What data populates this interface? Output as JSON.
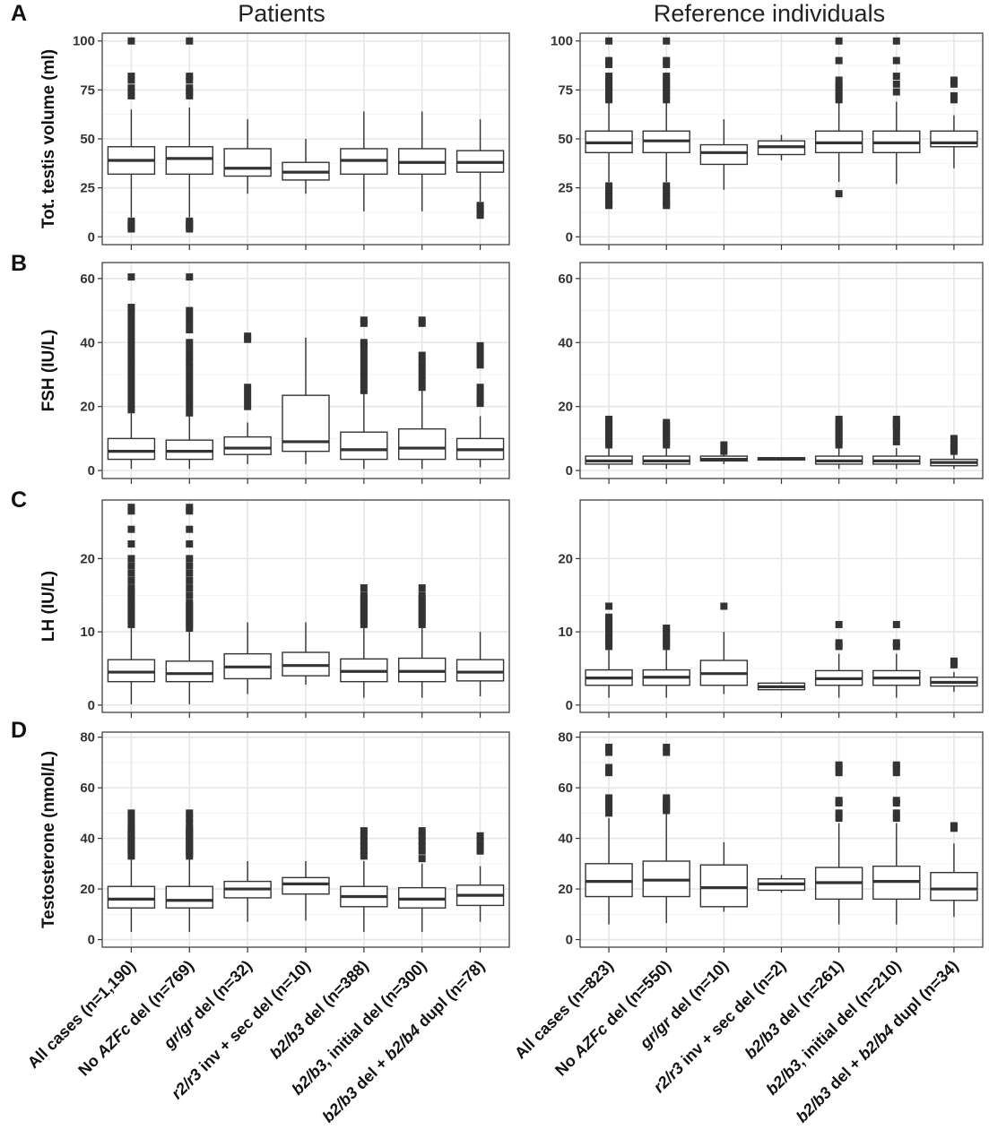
{
  "column_titles": [
    "Patients",
    "Reference individuals"
  ],
  "x_categories": {
    "patients": [
      [
        {
          "t": "All cases (n=1,190)",
          "i": false
        }
      ],
      [
        {
          "t": "No ",
          "i": false
        },
        {
          "t": "AZFc",
          "i": true
        },
        {
          "t": " del (n=769)",
          "i": false
        }
      ],
      [
        {
          "t": "gr/gr",
          "i": true
        },
        {
          "t": " del (n=32)",
          "i": false
        }
      ],
      [
        {
          "t": "r2/r3",
          "i": true
        },
        {
          "t": " inv + sec del (n=10)",
          "i": false
        }
      ],
      [
        {
          "t": "b2/b3",
          "i": true
        },
        {
          "t": " del (n=388)",
          "i": false
        }
      ],
      [
        {
          "t": "b2/b3",
          "i": true
        },
        {
          "t": ", initial del (n=300)",
          "i": false
        }
      ],
      [
        {
          "t": "b2/b3",
          "i": true
        },
        {
          "t": " del + ",
          "i": false
        },
        {
          "t": "b2/b4",
          "i": true
        },
        {
          "t": " dupl (n=78)",
          "i": false
        }
      ]
    ],
    "reference": [
      [
        {
          "t": "All cases (n=823)",
          "i": false
        }
      ],
      [
        {
          "t": "No ",
          "i": false
        },
        {
          "t": "AZFc",
          "i": true
        },
        {
          "t": " del (n=550)",
          "i": false
        }
      ],
      [
        {
          "t": "gr/gr",
          "i": true
        },
        {
          "t": " del (n=10)",
          "i": false
        }
      ],
      [
        {
          "t": "r2/r3",
          "i": true
        },
        {
          "t": " inv + sec del (n=2)",
          "i": false
        }
      ],
      [
        {
          "t": "b2/b3",
          "i": true
        },
        {
          "t": " del (n=261)",
          "i": false
        }
      ],
      [
        {
          "t": "b2/b3",
          "i": true
        },
        {
          "t": ", initial del (n=210)",
          "i": false
        }
      ],
      [
        {
          "t": "b2/b3",
          "i": true
        },
        {
          "t": " del + ",
          "i": false
        },
        {
          "t": "b2/b4",
          "i": true
        },
        {
          "t": " dupl (n=34)",
          "i": false
        }
      ]
    ]
  },
  "chart_data": [
    {
      "type": "box",
      "panel": "A",
      "column": "Patients",
      "ylabel": "Tot. testis volume (ml)",
      "ylim": [
        -4,
        104
      ],
      "yticks": [
        0,
        25,
        50,
        75,
        100
      ],
      "grid": true,
      "boxes": [
        {
          "q1": 32,
          "median": 39,
          "q3": 46,
          "low": 10,
          "high": 65,
          "outliers": [
            4,
            5,
            6,
            7,
            8,
            72,
            74,
            76,
            80,
            82,
            100
          ]
        },
        {
          "q1": 32,
          "median": 40,
          "q3": 46,
          "low": 10,
          "high": 66,
          "outliers": [
            4,
            5,
            6,
            7,
            8,
            72,
            74,
            76,
            80,
            82,
            100
          ]
        },
        {
          "q1": 31,
          "median": 35,
          "q3": 45,
          "low": 22,
          "high": 60,
          "outliers": []
        },
        {
          "q1": 29,
          "median": 33,
          "q3": 38,
          "low": 22,
          "high": 50,
          "outliers": []
        },
        {
          "q1": 32,
          "median": 39,
          "q3": 45,
          "low": 13,
          "high": 64,
          "outliers": []
        },
        {
          "q1": 32,
          "median": 38,
          "q3": 45,
          "low": 13,
          "high": 64,
          "outliers": []
        },
        {
          "q1": 33,
          "median": 38,
          "q3": 44,
          "low": 18,
          "high": 60,
          "outliers": [
            11,
            12,
            14,
            15,
            16
          ]
        }
      ]
    },
    {
      "type": "box",
      "panel": "A",
      "column": "Reference individuals",
      "ylabel": "",
      "ylim": [
        -4,
        104
      ],
      "yticks": [
        0,
        25,
        50,
        75,
        100
      ],
      "grid": true,
      "boxes": [
        {
          "q1": 43,
          "median": 48,
          "q3": 54,
          "low": 28,
          "high": 69,
          "outliers": [
            16,
            17,
            18,
            20,
            22,
            24,
            26,
            70,
            72,
            74,
            76,
            78,
            80,
            82,
            88,
            90,
            100
          ]
        },
        {
          "q1": 43,
          "median": 49,
          "q3": 54,
          "low": 28,
          "high": 69,
          "outliers": [
            16,
            17,
            18,
            20,
            22,
            24,
            26,
            70,
            72,
            74,
            76,
            78,
            80,
            82,
            88,
            90,
            100
          ]
        },
        {
          "q1": 37,
          "median": 43,
          "q3": 47,
          "low": 24,
          "high": 60,
          "outliers": []
        },
        {
          "q1": 42,
          "median": 46,
          "q3": 49,
          "low": 39,
          "high": 52,
          "outliers": []
        },
        {
          "q1": 43,
          "median": 48,
          "q3": 54,
          "low": 28,
          "high": 69,
          "outliers": [
            22,
            70,
            72,
            74,
            76,
            78,
            80,
            90,
            100
          ]
        },
        {
          "q1": 43,
          "median": 48,
          "q3": 54,
          "low": 27,
          "high": 69,
          "outliers": [
            74,
            78,
            82,
            90,
            100
          ]
        },
        {
          "q1": 46,
          "median": 48,
          "q3": 54,
          "low": 35,
          "high": 62,
          "outliers": [
            70,
            72,
            78,
            80
          ]
        }
      ]
    },
    {
      "type": "box",
      "panel": "B",
      "column": "Patients",
      "ylabel": "FSH (IU/L)",
      "ylim": [
        -2.5,
        65
      ],
      "yticks": [
        0,
        20,
        40,
        60
      ],
      "grid": true,
      "boxes": [
        {
          "q1": 3.5,
          "median": 6,
          "q3": 10,
          "low": 0.5,
          "high": 18,
          "outliers": [
            19,
            20,
            22,
            24,
            26,
            28,
            30,
            32,
            34,
            36,
            38,
            40,
            42,
            44,
            46,
            48,
            50,
            51,
            60.5
          ]
        },
        {
          "q1": 3.5,
          "median": 6,
          "q3": 9.5,
          "low": 0.5,
          "high": 17,
          "outliers": [
            18,
            20,
            22,
            24,
            26,
            28,
            30,
            32,
            34,
            36,
            38,
            40,
            44,
            46,
            48,
            50,
            60.5
          ]
        },
        {
          "q1": 5,
          "median": 7,
          "q3": 10.5,
          "low": 2,
          "high": 15,
          "outliers": [
            20,
            22,
            24,
            26,
            41,
            42
          ]
        },
        {
          "q1": 6,
          "median": 9,
          "q3": 23.5,
          "low": 2,
          "high": 41.5,
          "outliers": []
        },
        {
          "q1": 3.5,
          "median": 6.5,
          "q3": 12,
          "low": 0.5,
          "high": 24,
          "outliers": [
            25,
            27,
            29,
            31,
            33,
            35,
            37,
            39,
            40,
            46,
            47
          ]
        },
        {
          "q1": 3.5,
          "median": 7,
          "q3": 13,
          "low": 0.5,
          "high": 25,
          "outliers": [
            26,
            28,
            30,
            32,
            34,
            36,
            46,
            47
          ]
        },
        {
          "q1": 3.5,
          "median": 6.5,
          "q3": 10,
          "low": 1,
          "high": 17,
          "outliers": [
            21,
            22,
            24,
            26,
            33,
            35,
            37,
            39
          ]
        }
      ]
    },
    {
      "type": "box",
      "panel": "B",
      "column": "Reference individuals",
      "ylabel": "",
      "ylim": [
        -2.5,
        65
      ],
      "yticks": [
        0,
        20,
        40,
        60
      ],
      "grid": true,
      "boxes": [
        {
          "q1": 2,
          "median": 3,
          "q3": 4.5,
          "low": 0.5,
          "high": 7,
          "outliers": [
            8,
            9,
            10,
            11,
            12,
            13,
            14,
            15,
            16
          ]
        },
        {
          "q1": 2,
          "median": 3,
          "q3": 4.5,
          "low": 0.5,
          "high": 7,
          "outliers": [
            8,
            9,
            10,
            11,
            12,
            13,
            14,
            15
          ]
        },
        {
          "q1": 3,
          "median": 3.5,
          "q3": 4.5,
          "low": 2,
          "high": 5,
          "outliers": [
            6,
            8
          ]
        },
        {
          "q1": 3.3,
          "median": 3.7,
          "q3": 4,
          "low": 3.3,
          "high": 4,
          "outliers": []
        },
        {
          "q1": 2,
          "median": 3,
          "q3": 4.5,
          "low": 0.5,
          "high": 7,
          "outliers": [
            8,
            9,
            10,
            11,
            12,
            13,
            14,
            15,
            16
          ]
        },
        {
          "q1": 2,
          "median": 3,
          "q3": 4.5,
          "low": 0.5,
          "high": 7,
          "outliers": [
            9,
            11,
            13,
            14,
            15,
            16
          ]
        },
        {
          "q1": 1.5,
          "median": 2.5,
          "q3": 3.5,
          "low": 0.5,
          "high": 5,
          "outliers": [
            6,
            7,
            8,
            9,
            10
          ]
        }
      ]
    },
    {
      "type": "box",
      "panel": "C",
      "column": "Patients",
      "ylabel": "LH (IU/L)",
      "ylim": [
        -1,
        28
      ],
      "yticks": [
        0,
        10,
        20
      ],
      "grid": true,
      "boxes": [
        {
          "q1": 3.2,
          "median": 4.5,
          "q3": 6.2,
          "low": 0.1,
          "high": 10.5,
          "outliers": [
            11,
            11.5,
            12,
            12.5,
            13,
            13.5,
            14,
            14.5,
            15,
            15.5,
            16,
            17,
            18,
            19,
            20,
            22,
            24,
            26.5,
            27
          ]
        },
        {
          "q1": 3.2,
          "median": 4.3,
          "q3": 6,
          "low": 0.1,
          "high": 10,
          "outliers": [
            10.5,
            11,
            11.5,
            12,
            12.5,
            13,
            13.5,
            14,
            15,
            16,
            17,
            18,
            19,
            20,
            22,
            24,
            26.5,
            27
          ]
        },
        {
          "q1": 3.6,
          "median": 5.2,
          "q3": 7,
          "low": 1.5,
          "high": 11.3,
          "outliers": []
        },
        {
          "q1": 4,
          "median": 5.4,
          "q3": 7.2,
          "low": 2.8,
          "high": 11.3,
          "outliers": []
        },
        {
          "q1": 3.2,
          "median": 4.6,
          "q3": 6.3,
          "low": 1,
          "high": 10.5,
          "outliers": [
            11,
            11.5,
            12,
            12.5,
            13,
            13.5,
            14,
            14.5,
            15,
            16
          ]
        },
        {
          "q1": 3.2,
          "median": 4.6,
          "q3": 6.4,
          "low": 1,
          "high": 10.5,
          "outliers": [
            11,
            11.5,
            12,
            12.5,
            13,
            13.5,
            14,
            14.5,
            15,
            16
          ]
        },
        {
          "q1": 3.3,
          "median": 4.5,
          "q3": 6.2,
          "low": 1.2,
          "high": 10,
          "outliers": []
        }
      ]
    },
    {
      "type": "box",
      "panel": "C",
      "column": "Reference individuals",
      "ylabel": "",
      "ylim": [
        -1,
        28
      ],
      "yticks": [
        0,
        10,
        20
      ],
      "grid": true,
      "boxes": [
        {
          "q1": 2.7,
          "median": 3.7,
          "q3": 4.8,
          "low": 1,
          "high": 7.5,
          "outliers": [
            8,
            8.5,
            9,
            9.5,
            10,
            10.5,
            11,
            11.5,
            12,
            13.5
          ]
        },
        {
          "q1": 2.7,
          "median": 3.8,
          "q3": 4.8,
          "low": 1,
          "high": 7.5,
          "outliers": [
            8,
            8.5,
            9,
            9.5,
            10,
            10.5
          ]
        },
        {
          "q1": 2.7,
          "median": 4.3,
          "q3": 6.1,
          "low": 1.5,
          "high": 10,
          "outliers": [
            13.5
          ]
        },
        {
          "q1": 2.1,
          "median": 2.5,
          "q3": 3,
          "low": 2,
          "high": 3.2,
          "outliers": []
        },
        {
          "q1": 2.7,
          "median": 3.6,
          "q3": 4.7,
          "low": 1,
          "high": 7,
          "outliers": [
            8,
            8.5,
            11
          ]
        },
        {
          "q1": 2.7,
          "median": 3.7,
          "q3": 4.7,
          "low": 1,
          "high": 7,
          "outliers": [
            8,
            8.5,
            11
          ]
        },
        {
          "q1": 2.6,
          "median": 3.1,
          "q3": 3.8,
          "low": 1.8,
          "high": 4.5,
          "outliers": [
            5.5,
            6
          ]
        }
      ]
    },
    {
      "type": "box",
      "panel": "D",
      "column": "Patients",
      "ylabel": "Testosterone (nmol/L)",
      "ylim": [
        -3,
        82
      ],
      "yticks": [
        0,
        20,
        40,
        60,
        80
      ],
      "grid": true,
      "boxes": [
        {
          "q1": 12.5,
          "median": 16,
          "q3": 21,
          "low": 3,
          "high": 32,
          "outliers": [
            33,
            34,
            35,
            36,
            37,
            38,
            39,
            40,
            41,
            42,
            43,
            44,
            46,
            48,
            50
          ]
        },
        {
          "q1": 12.5,
          "median": 15.5,
          "q3": 21,
          "low": 3,
          "high": 32,
          "outliers": [
            33,
            34,
            35,
            36,
            37,
            38,
            39,
            40,
            41,
            42,
            43,
            44,
            46,
            48,
            50
          ]
        },
        {
          "q1": 16.5,
          "median": 20,
          "q3": 23,
          "low": 7,
          "high": 31,
          "outliers": []
        },
        {
          "q1": 18,
          "median": 22,
          "q3": 24.5,
          "low": 7.5,
          "high": 31,
          "outliers": []
        },
        {
          "q1": 13,
          "median": 17,
          "q3": 21,
          "low": 3,
          "high": 31,
          "outliers": [
            33,
            35,
            37,
            39,
            41,
            43
          ]
        },
        {
          "q1": 12.5,
          "median": 16,
          "q3": 20.5,
          "low": 3,
          "high": 30,
          "outliers": [
            32,
            35,
            37,
            39,
            41,
            43
          ]
        },
        {
          "q1": 13.5,
          "median": 17.5,
          "q3": 21.5,
          "low": 7,
          "high": 29,
          "outliers": [
            35,
            37,
            39,
            41
          ]
        }
      ]
    },
    {
      "type": "box",
      "panel": "D",
      "column": "Reference individuals",
      "ylabel": "",
      "ylim": [
        -3,
        82
      ],
      "yticks": [
        0,
        20,
        40,
        60,
        80
      ],
      "grid": true,
      "boxes": [
        {
          "q1": 17,
          "median": 23,
          "q3": 30,
          "low": 6,
          "high": 48,
          "outliers": [
            50,
            52,
            54,
            56,
            66,
            68,
            74,
            76
          ]
        },
        {
          "q1": 17,
          "median": 23.5,
          "q3": 31,
          "low": 6.5,
          "high": 50,
          "outliers": [
            51,
            52,
            53,
            54,
            55,
            56,
            74,
            76
          ]
        },
        {
          "q1": 13,
          "median": 20.5,
          "q3": 29.5,
          "low": 11,
          "high": 38.5,
          "outliers": []
        },
        {
          "q1": 19.5,
          "median": 22,
          "q3": 24,
          "low": 18.5,
          "high": 25.5,
          "outliers": []
        },
        {
          "q1": 16,
          "median": 22.5,
          "q3": 28.5,
          "low": 6,
          "high": 46,
          "outliers": [
            48,
            50,
            54,
            55,
            66,
            68,
            69
          ]
        },
        {
          "q1": 16,
          "median": 23,
          "q3": 29,
          "low": 6,
          "high": 46,
          "outliers": [
            48,
            50,
            54,
            55,
            66,
            68,
            69
          ]
        },
        {
          "q1": 15.5,
          "median": 20,
          "q3": 26.5,
          "low": 9,
          "high": 38,
          "outliers": [
            44,
            45
          ]
        }
      ]
    }
  ]
}
